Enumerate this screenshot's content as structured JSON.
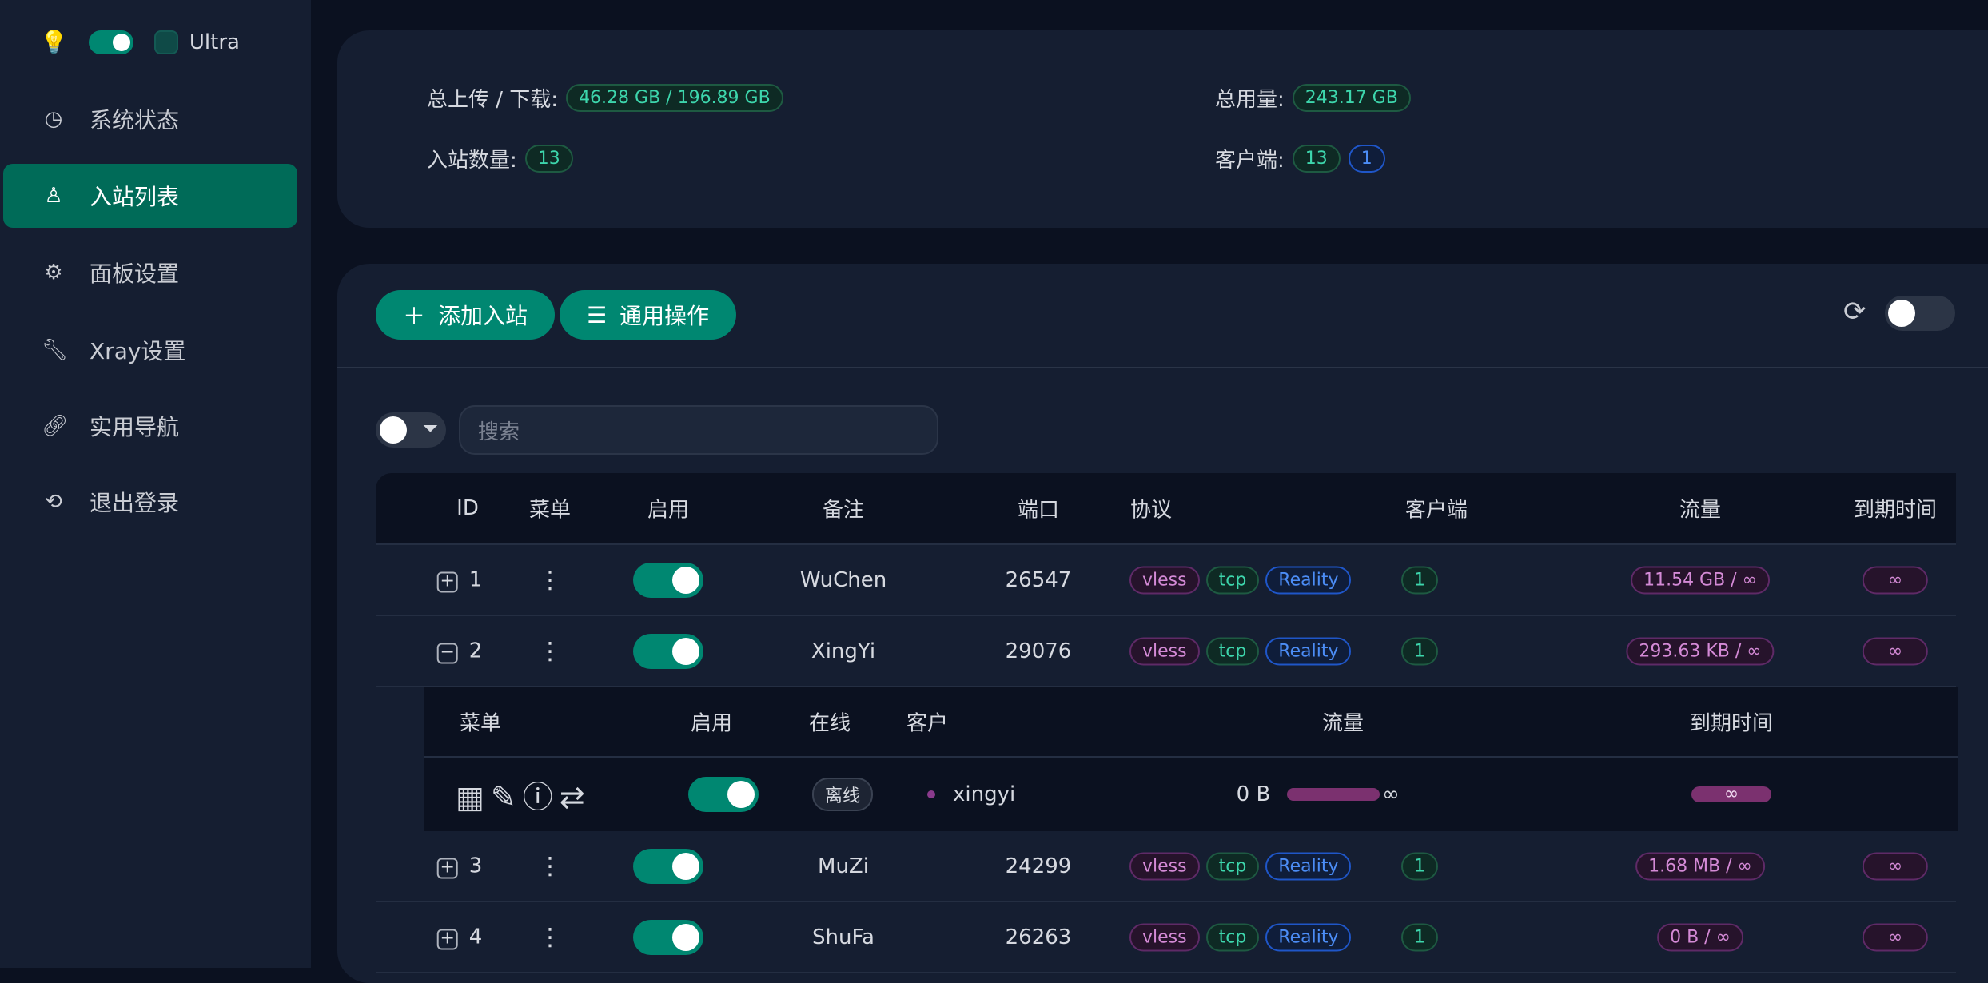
{
  "sidebar": {
    "theme_label": "Ultra",
    "items": [
      {
        "label": "系统状态",
        "icon": "dashboard-icon"
      },
      {
        "label": "入站列表",
        "icon": "user-icon"
      },
      {
        "label": "面板设置",
        "icon": "gear-icon"
      },
      {
        "label": "Xray设置",
        "icon": "wrench-icon"
      },
      {
        "label": "实用导航",
        "icon": "link-icon"
      },
      {
        "label": "退出登录",
        "icon": "logout-icon"
      }
    ]
  },
  "stats": {
    "updown_label": "总上传 / 下载:",
    "updown": "46.28 GB / 196.89 GB",
    "total_label": "总用量:",
    "total": "243.17 GB",
    "inbounds_label": "入站数量:",
    "inbounds": "13",
    "clients_label": "客户端:",
    "clients": "13",
    "clients_online": "1"
  },
  "toolbar": {
    "add": "添加入站",
    "general": "通用操作",
    "search_placeholder": "搜索"
  },
  "table": {
    "headers": [
      "ID",
      "菜单",
      "启用",
      "备注",
      "端口",
      "协议",
      "客户端",
      "流量",
      "到期时间"
    ],
    "rows": [
      {
        "id": "1",
        "remark": "WuChen",
        "port": "26547",
        "protocol": [
          "vless",
          "tcp",
          "Reality"
        ],
        "clients": "1",
        "traffic": "11.54 GB / ∞",
        "expiry": "∞",
        "expanded": false
      },
      {
        "id": "2",
        "remark": "XingYi",
        "port": "29076",
        "protocol": [
          "vless",
          "tcp",
          "Reality"
        ],
        "clients": "1",
        "traffic": "293.63 KB / ∞",
        "expiry": "∞",
        "expanded": true
      },
      {
        "id": "3",
        "remark": "MuZi",
        "port": "24299",
        "protocol": [
          "vless",
          "tcp",
          "Reality"
        ],
        "clients": "1",
        "traffic": "1.68 MB / ∞",
        "expiry": "∞",
        "expanded": false
      },
      {
        "id": "4",
        "remark": "ShuFa",
        "port": "26263",
        "protocol": [
          "vless",
          "tcp",
          "Reality"
        ],
        "clients": "1",
        "traffic": "0 B / ∞",
        "expiry": "∞",
        "expanded": false
      }
    ]
  },
  "client_table": {
    "headers": [
      "菜单",
      "启用",
      "在线",
      "客户",
      "流量",
      "到期时间"
    ],
    "rows": [
      {
        "status": "离线",
        "email": "xingyi",
        "traffic": "0 B",
        "limit": "∞",
        "expiry": "∞"
      }
    ]
  },
  "colors": {
    "accent": "#008771",
    "sidebar": "#151e31",
    "background": "#0b1120"
  }
}
